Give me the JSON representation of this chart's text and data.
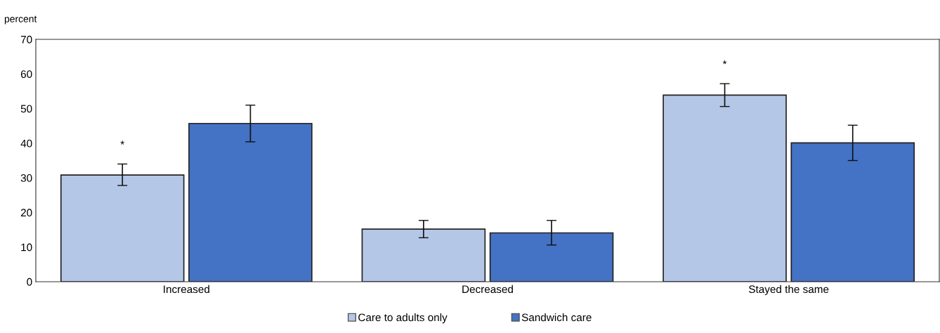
{
  "chart_data": {
    "type": "bar",
    "ylabel": "percent",
    "categories": [
      "Increased",
      "Decreased",
      "Stayed the same"
    ],
    "series": [
      {
        "name": "Care to adults only",
        "color": "#b4c7e7",
        "values": [
          30.8,
          15.2,
          53.9
        ],
        "value_labels": [
          "*",
          null,
          "*"
        ],
        "errors": [
          [
            27.8,
            34.0
          ],
          [
            12.7,
            17.7
          ],
          [
            50.6,
            57.2
          ]
        ]
      },
      {
        "name": "Sandwich care",
        "color": "#4472c4",
        "values": [
          45.7,
          14.1,
          40.1
        ],
        "errors": [
          [
            40.4,
            51.0
          ],
          [
            10.6,
            17.7
          ],
          [
            35.0,
            45.2
          ]
        ]
      }
    ],
    "ylim": [
      0,
      70
    ],
    "yticks": [
      0,
      10,
      20,
      30,
      40,
      50,
      60,
      70
    ],
    "grid": false,
    "legend": "bottom"
  }
}
